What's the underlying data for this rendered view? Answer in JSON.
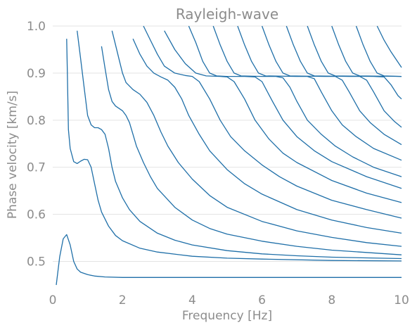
{
  "chart_data": {
    "type": "line",
    "title": "Rayleigh-wave",
    "xlabel": "Frequency [Hz]",
    "ylabel": "Phase velocity [km/s]",
    "xlim": [
      0,
      10
    ],
    "ylim": [
      0.45,
      1.0
    ],
    "xticks": [
      0,
      2,
      4,
      6,
      8,
      10
    ],
    "yticks": [
      0.5,
      0.6,
      0.7,
      0.8,
      0.9,
      1.0
    ],
    "xtick_labels": [
      "0",
      "2",
      "4",
      "6",
      "8",
      "10"
    ],
    "ytick_labels": [
      "0.5",
      "0.6",
      "0.7",
      "0.8",
      "0.9",
      "1.0"
    ],
    "grid": "horizontal",
    "line_color": "#1f6fa8",
    "series": [
      {
        "points": [
          [
            0.1,
            0.45
          ],
          [
            0.2,
            0.51
          ],
          [
            0.3,
            0.548
          ],
          [
            0.4,
            0.557
          ],
          [
            0.5,
            0.535
          ],
          [
            0.6,
            0.5
          ],
          [
            0.7,
            0.484
          ],
          [
            0.8,
            0.477
          ],
          [
            1.0,
            0.472
          ],
          [
            1.2,
            0.469
          ],
          [
            1.5,
            0.467
          ],
          [
            2,
            0.466
          ],
          [
            3,
            0.466
          ],
          [
            5,
            0.466
          ],
          [
            7,
            0.466
          ],
          [
            10,
            0.466
          ]
        ]
      },
      {
        "points": [
          [
            0.4,
            0.973
          ],
          [
            0.42,
            0.9
          ],
          [
            0.45,
            0.78
          ],
          [
            0.5,
            0.74
          ],
          [
            0.6,
            0.712
          ],
          [
            0.7,
            0.708
          ],
          [
            0.8,
            0.713
          ],
          [
            0.9,
            0.717
          ],
          [
            1.0,
            0.716
          ],
          [
            1.1,
            0.7
          ],
          [
            1.2,
            0.665
          ],
          [
            1.3,
            0.63
          ],
          [
            1.4,
            0.605
          ],
          [
            1.6,
            0.575
          ],
          [
            1.8,
            0.555
          ],
          [
            2,
            0.544
          ],
          [
            2.5,
            0.528
          ],
          [
            3,
            0.52
          ],
          [
            4,
            0.511
          ],
          [
            5,
            0.507
          ],
          [
            6,
            0.505
          ],
          [
            8,
            0.502
          ],
          [
            10,
            0.501
          ]
        ]
      },
      {
        "points": [
          [
            0.7,
            0.99
          ],
          [
            0.8,
            0.93
          ],
          [
            0.9,
            0.87
          ],
          [
            1.0,
            0.81
          ],
          [
            1.1,
            0.79
          ],
          [
            1.2,
            0.784
          ],
          [
            1.3,
            0.784
          ],
          [
            1.4,
            0.78
          ],
          [
            1.5,
            0.77
          ],
          [
            1.6,
            0.74
          ],
          [
            1.7,
            0.7
          ],
          [
            1.8,
            0.67
          ],
          [
            2,
            0.635
          ],
          [
            2.2,
            0.61
          ],
          [
            2.5,
            0.585
          ],
          [
            3,
            0.56
          ],
          [
            3.5,
            0.545
          ],
          [
            4,
            0.535
          ],
          [
            5,
            0.523
          ],
          [
            6,
            0.516
          ],
          [
            7,
            0.512
          ],
          [
            8,
            0.509
          ],
          [
            10,
            0.506
          ]
        ]
      },
      {
        "points": [
          [
            1.4,
            0.957
          ],
          [
            1.5,
            0.91
          ],
          [
            1.6,
            0.865
          ],
          [
            1.7,
            0.84
          ],
          [
            1.8,
            0.83
          ],
          [
            2,
            0.82
          ],
          [
            2.1,
            0.81
          ],
          [
            2.2,
            0.795
          ],
          [
            2.3,
            0.77
          ],
          [
            2.4,
            0.745
          ],
          [
            2.6,
            0.71
          ],
          [
            2.8,
            0.68
          ],
          [
            3,
            0.655
          ],
          [
            3.5,
            0.615
          ],
          [
            4,
            0.588
          ],
          [
            4.5,
            0.57
          ],
          [
            5,
            0.558
          ],
          [
            6,
            0.543
          ],
          [
            7,
            0.532
          ],
          [
            8,
            0.524
          ],
          [
            10,
            0.514
          ]
        ]
      },
      {
        "points": [
          [
            1.7,
            0.99
          ],
          [
            1.8,
            0.96
          ],
          [
            1.9,
            0.93
          ],
          [
            2.0,
            0.9
          ],
          [
            2.1,
            0.88
          ],
          [
            2.3,
            0.865
          ],
          [
            2.5,
            0.855
          ],
          [
            2.7,
            0.838
          ],
          [
            2.9,
            0.81
          ],
          [
            3.1,
            0.775
          ],
          [
            3.3,
            0.745
          ],
          [
            3.6,
            0.71
          ],
          [
            4,
            0.675
          ],
          [
            4.5,
            0.64
          ],
          [
            5,
            0.615
          ],
          [
            6,
            0.585
          ],
          [
            7,
            0.565
          ],
          [
            8,
            0.551
          ],
          [
            9,
            0.54
          ],
          [
            10,
            0.532
          ]
        ]
      },
      {
        "points": [
          [
            2.3,
            0.973
          ],
          [
            2.5,
            0.94
          ],
          [
            2.7,
            0.915
          ],
          [
            2.9,
            0.9
          ],
          [
            3.1,
            0.892
          ],
          [
            3.3,
            0.885
          ],
          [
            3.5,
            0.87
          ],
          [
            3.7,
            0.845
          ],
          [
            3.9,
            0.81
          ],
          [
            4.2,
            0.77
          ],
          [
            4.5,
            0.735
          ],
          [
            5,
            0.695
          ],
          [
            5.5,
            0.665
          ],
          [
            6,
            0.643
          ],
          [
            7,
            0.61
          ],
          [
            8,
            0.588
          ],
          [
            9,
            0.572
          ],
          [
            10,
            0.56
          ]
        ]
      },
      {
        "points": [
          [
            2.6,
            1.0
          ],
          [
            2.8,
            0.97
          ],
          [
            3.0,
            0.94
          ],
          [
            3.2,
            0.915
          ],
          [
            3.5,
            0.9
          ],
          [
            3.8,
            0.895
          ],
          [
            4.0,
            0.893
          ],
          [
            4.2,
            0.882
          ],
          [
            4.5,
            0.845
          ],
          [
            4.8,
            0.8
          ],
          [
            5.1,
            0.765
          ],
          [
            5.5,
            0.735
          ],
          [
            6,
            0.705
          ],
          [
            6.5,
            0.68
          ],
          [
            7,
            0.66
          ],
          [
            8,
            0.63
          ],
          [
            9,
            0.61
          ],
          [
            10,
            0.592
          ]
        ]
      },
      {
        "points": [
          [
            3.2,
            0.99
          ],
          [
            3.5,
            0.95
          ],
          [
            3.8,
            0.92
          ],
          [
            4.1,
            0.9
          ],
          [
            4.4,
            0.894
          ],
          [
            4.8,
            0.893
          ],
          [
            5.0,
            0.892
          ],
          [
            5.2,
            0.882
          ],
          [
            5.5,
            0.845
          ],
          [
            5.8,
            0.8
          ],
          [
            6.2,
            0.76
          ],
          [
            6.6,
            0.73
          ],
          [
            7,
            0.71
          ],
          [
            8,
            0.672
          ],
          [
            9,
            0.645
          ],
          [
            10,
            0.625
          ]
        ]
      },
      {
        "points": [
          [
            3.9,
            1.0
          ],
          [
            4.1,
            0.965
          ],
          [
            4.3,
            0.925
          ],
          [
            4.5,
            0.9
          ],
          [
            4.7,
            0.894
          ],
          [
            5.0,
            0.893
          ],
          [
            5.5,
            0.893
          ],
          [
            5.8,
            0.892
          ],
          [
            6.0,
            0.882
          ],
          [
            6.3,
            0.84
          ],
          [
            6.6,
            0.8
          ],
          [
            7,
            0.765
          ],
          [
            7.5,
            0.735
          ],
          [
            8,
            0.712
          ],
          [
            9,
            0.68
          ],
          [
            10,
            0.655
          ]
        ]
      },
      {
        "points": [
          [
            4.6,
            1.0
          ],
          [
            4.8,
            0.96
          ],
          [
            5.0,
            0.925
          ],
          [
            5.2,
            0.9
          ],
          [
            5.4,
            0.894
          ],
          [
            6.0,
            0.893
          ],
          [
            6.4,
            0.893
          ],
          [
            6.6,
            0.89
          ],
          [
            6.8,
            0.87
          ],
          [
            7.0,
            0.84
          ],
          [
            7.3,
            0.8
          ],
          [
            7.7,
            0.77
          ],
          [
            8.1,
            0.745
          ],
          [
            8.6,
            0.722
          ],
          [
            9.2,
            0.7
          ],
          [
            10,
            0.68
          ]
        ]
      },
      {
        "points": [
          [
            5.3,
            1.0
          ],
          [
            5.5,
            0.96
          ],
          [
            5.7,
            0.925
          ],
          [
            5.9,
            0.9
          ],
          [
            6.1,
            0.894
          ],
          [
            7.0,
            0.893
          ],
          [
            7.3,
            0.893
          ],
          [
            7.5,
            0.888
          ],
          [
            7.7,
            0.86
          ],
          [
            8.0,
            0.82
          ],
          [
            8.3,
            0.79
          ],
          [
            8.7,
            0.765
          ],
          [
            9.2,
            0.74
          ],
          [
            10,
            0.715
          ]
        ]
      },
      {
        "points": [
          [
            6.0,
            1.0
          ],
          [
            6.2,
            0.96
          ],
          [
            6.4,
            0.925
          ],
          [
            6.6,
            0.9
          ],
          [
            6.8,
            0.894
          ],
          [
            7.8,
            0.893
          ],
          [
            8.1,
            0.893
          ],
          [
            8.3,
            0.885
          ],
          [
            8.5,
            0.86
          ],
          [
            8.8,
            0.82
          ],
          [
            9.1,
            0.795
          ],
          [
            9.5,
            0.77
          ],
          [
            10,
            0.748
          ]
        ]
      },
      {
        "points": [
          [
            6.7,
            1.0
          ],
          [
            6.9,
            0.96
          ],
          [
            7.1,
            0.925
          ],
          [
            7.3,
            0.9
          ],
          [
            7.5,
            0.894
          ],
          [
            8.5,
            0.893
          ],
          [
            8.8,
            0.893
          ],
          [
            9.0,
            0.885
          ],
          [
            9.2,
            0.86
          ],
          [
            9.5,
            0.82
          ],
          [
            9.8,
            0.797
          ],
          [
            10,
            0.785
          ]
        ]
      },
      {
        "points": [
          [
            7.3,
            1.0
          ],
          [
            7.5,
            0.96
          ],
          [
            7.7,
            0.925
          ],
          [
            7.9,
            0.9
          ],
          [
            8.1,
            0.894
          ],
          [
            9.2,
            0.893
          ],
          [
            9.5,
            0.892
          ],
          [
            9.7,
            0.875
          ],
          [
            9.9,
            0.852
          ],
          [
            10,
            0.845
          ]
        ]
      },
      {
        "points": [
          [
            8.0,
            1.0
          ],
          [
            8.2,
            0.96
          ],
          [
            8.4,
            0.925
          ],
          [
            8.6,
            0.9
          ],
          [
            8.8,
            0.894
          ],
          [
            10,
            0.893
          ]
        ]
      },
      {
        "points": [
          [
            8.7,
            1.0
          ],
          [
            8.9,
            0.96
          ],
          [
            9.1,
            0.925
          ],
          [
            9.3,
            0.9
          ],
          [
            9.5,
            0.894
          ],
          [
            10,
            0.893
          ]
        ]
      },
      {
        "points": [
          [
            9.3,
            1.0
          ],
          [
            9.5,
            0.97
          ],
          [
            9.7,
            0.945
          ],
          [
            10,
            0.912
          ]
        ]
      }
    ]
  }
}
